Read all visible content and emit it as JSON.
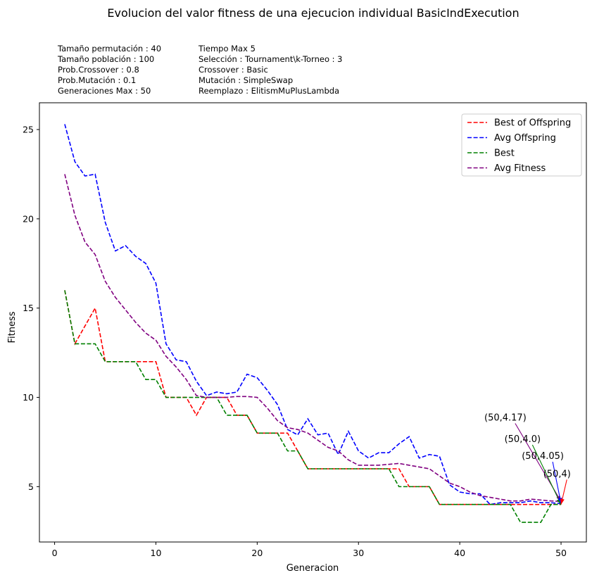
{
  "chart_data": {
    "type": "line",
    "title": "Evolucion del valor fitness de una ejecucion individual BasicIndExecution",
    "xlabel": "Generacion",
    "ylabel": "Fitness",
    "xlim": [
      -1.5,
      52.5
    ],
    "ylim": [
      1.9,
      26.5
    ],
    "xticks": [
      0,
      10,
      20,
      30,
      40,
      50
    ],
    "yticks": [
      5,
      10,
      15,
      20,
      25
    ],
    "grid": false,
    "legend_position": "top-right",
    "params_left": [
      "Tamaño permutación : 40",
      "Tamaño población : 100",
      "Prob.Crossover : 0.8",
      "Prob.Mutación : 0.1",
      "Generaciones Max : 50"
    ],
    "params_right": [
      "Tiempo Max 5",
      "Selección : Tournament\\k-Torneo : 3",
      "Crossover : Basic",
      "Mutación : SimpleSwap",
      "Reemplazo : ElitismMuPlusLambda"
    ],
    "x": [
      1,
      2,
      3,
      4,
      5,
      6,
      7,
      8,
      9,
      10,
      11,
      12,
      13,
      14,
      15,
      16,
      17,
      18,
      19,
      20,
      21,
      22,
      23,
      24,
      25,
      26,
      27,
      28,
      29,
      30,
      31,
      32,
      33,
      34,
      35,
      36,
      37,
      38,
      39,
      40,
      41,
      42,
      43,
      44,
      45,
      46,
      47,
      48,
      49,
      50
    ],
    "series": [
      {
        "name": "Best of Offspring",
        "color": "#ff0000",
        "values": [
          16,
          13,
          14,
          15,
          12,
          12,
          12,
          12,
          12,
          12,
          10,
          10,
          10,
          9,
          10,
          10,
          10,
          9,
          9,
          8,
          8,
          8,
          8,
          7,
          6,
          6,
          6,
          6,
          6,
          6,
          6,
          6,
          6,
          6,
          5,
          5,
          5,
          4,
          4,
          4,
          4,
          4,
          4,
          4,
          4,
          4,
          4,
          4,
          4,
          4
        ]
      },
      {
        "name": "Avg Offspring",
        "color": "#0000ff",
        "values": [
          25.3,
          23.2,
          22.4,
          22.5,
          19.8,
          18.2,
          18.5,
          17.9,
          17.5,
          16.4,
          13,
          12.1,
          12,
          10.9,
          10.1,
          10.3,
          10.2,
          10.3,
          11.3,
          11.1,
          10.4,
          9.6,
          8.2,
          7.9,
          8.8,
          7.9,
          8,
          6.8,
          8.1,
          7,
          6.6,
          6.9,
          6.9,
          7.4,
          7.8,
          6.6,
          6.8,
          6.7,
          5.1,
          4.7,
          4.6,
          4.6,
          4,
          4.1,
          4.1,
          4.1,
          4.2,
          4.1,
          4.1,
          4.05
        ]
      },
      {
        "name": "Best",
        "color": "#008000",
        "values": [
          16,
          13,
          13,
          13,
          12,
          12,
          12,
          12,
          11,
          11,
          10,
          10,
          10,
          10,
          10,
          10,
          9,
          9,
          9,
          8,
          8,
          8,
          7,
          7,
          6,
          6,
          6,
          6,
          6,
          6,
          6,
          6,
          6,
          5,
          5,
          5,
          5,
          4,
          4,
          4,
          4,
          4,
          4,
          4,
          4,
          3,
          3,
          3,
          4,
          4
        ]
      },
      {
        "name": "Avg Fitness",
        "color": "#800080",
        "values": [
          22.5,
          20.2,
          18.7,
          18,
          16.5,
          15.6,
          14.9,
          14.2,
          13.6,
          13.2,
          12.3,
          11.7,
          11,
          10.1,
          10,
          10,
          10,
          10.05,
          10.05,
          10,
          9.4,
          8.7,
          8.3,
          8.2,
          8,
          7.6,
          7.2,
          7,
          6.5,
          6.2,
          6.2,
          6.2,
          6.25,
          6.3,
          6.2,
          6.1,
          6,
          5.6,
          5.2,
          5,
          4.7,
          4.5,
          4.4,
          4.3,
          4.2,
          4.2,
          4.3,
          4.25,
          4.2,
          4.17
        ]
      }
    ],
    "annotations": [
      {
        "text": "(50,4.17)",
        "target": [
          50,
          4.17
        ],
        "text_pos": [
          44.5,
          8.7
        ],
        "color": "#800080"
      },
      {
        "text": "(50,4.0)",
        "target": [
          50,
          4.0
        ],
        "text_pos": [
          46.2,
          7.5
        ],
        "color": "#008000"
      },
      {
        "text": "(50,4.05)",
        "target": [
          50,
          4.05
        ],
        "text_pos": [
          48.2,
          6.55
        ],
        "color": "#0000ff"
      },
      {
        "text": "(50,4)",
        "target": [
          50,
          4.0
        ],
        "text_pos": [
          49.6,
          5.55
        ],
        "color": "#ff0000"
      }
    ]
  }
}
